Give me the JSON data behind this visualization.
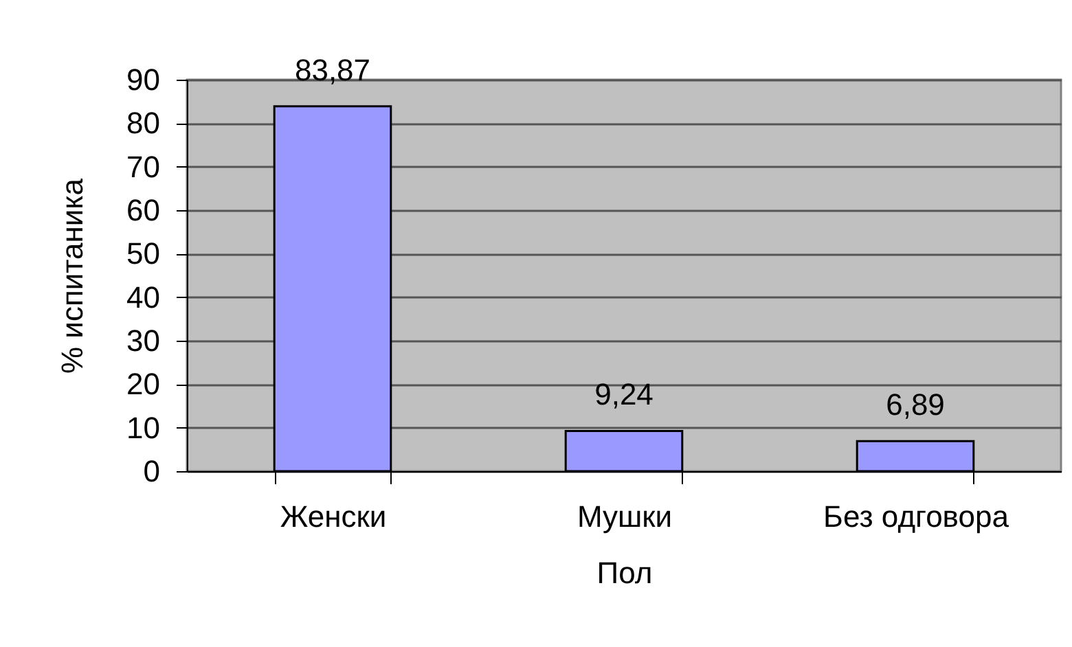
{
  "chart_data": {
    "type": "bar",
    "xlabel": "Пол",
    "ylabel": "% испитаника",
    "categories": [
      "Женски",
      "Мушки",
      "Без одговора"
    ],
    "values": [
      83.87,
      9.24,
      6.89
    ],
    "value_labels": [
      "83,87",
      "9,24",
      "6,89"
    ],
    "color": "#9999ff",
    "ylim": [
      0,
      90
    ],
    "yticks": [
      0,
      10,
      20,
      30,
      40,
      50,
      60,
      70,
      80,
      90
    ],
    "grid": "y"
  }
}
